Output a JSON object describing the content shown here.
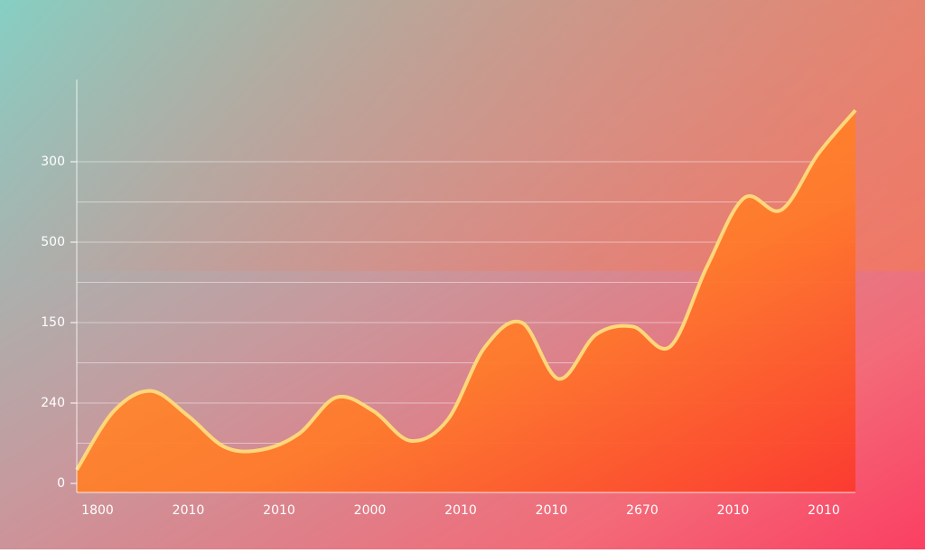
{
  "chart_data": {
    "type": "area",
    "x_labels": [
      "1800",
      "2010",
      "2010",
      "2000",
      "2010",
      "2010",
      "2670",
      "2010",
      "2010"
    ],
    "values": [
      0.17,
      0.9,
      1.15,
      0.84,
      0.45,
      0.42,
      0.62,
      1.07,
      0.9,
      0.53,
      0.79,
      1.69,
      2.0,
      1.3,
      1.85,
      1.95,
      1.7,
      2.7,
      3.55,
      3.4,
      4.1,
      4.64
    ],
    "ylim": [
      0,
      5
    ],
    "yticks": [
      {
        "value": 0,
        "label": "0"
      },
      {
        "value": 1,
        "label": "240"
      },
      {
        "value": 2,
        "label": "150"
      },
      {
        "value": 3,
        "label": "500"
      },
      {
        "value": 4,
        "label": "300"
      }
    ],
    "grid_lines": [
      0.5,
      1,
      1.5,
      2,
      2.5,
      3,
      3.5,
      4
    ],
    "color": "#ff8a2a",
    "line_color": "#ffd77a",
    "grid": true
  }
}
